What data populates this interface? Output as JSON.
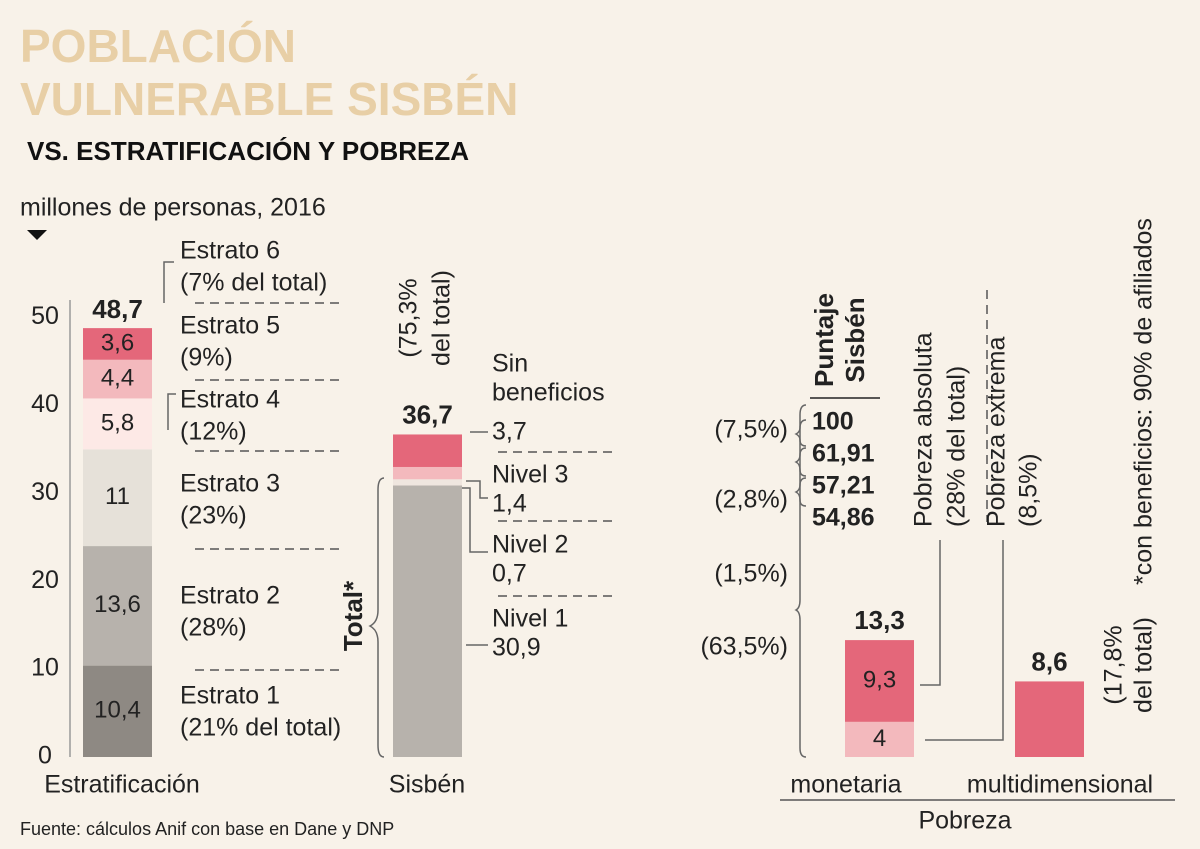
{
  "chart_data": {
    "type": "stacked_bar",
    "title_lines": [
      "POBLACIÓN",
      "VULNERABLE SISBÉN"
    ],
    "subtitle": "VS. ESTRATIFICACIÓN Y POBREZA",
    "unit_label": "millones de personas, 2016",
    "source": "Fuente: cálculos Anif con base en Dane y DNP",
    "ylim": [
      0,
      52
    ],
    "yticks": [
      0,
      10,
      20,
      30,
      40,
      50
    ],
    "bars": [
      {
        "category": "Estratificación",
        "total": 48.7,
        "total_label": "48,7",
        "segments": [
          {
            "value": 10.4,
            "value_label": "10,4",
            "color": "#8e8983",
            "label_lines": [
              "Estrato 1",
              "(21% del total)"
            ]
          },
          {
            "value": 13.6,
            "value_label": "13,6",
            "color": "#b7b2ac",
            "label_lines": [
              "Estrato 2",
              "(28%)"
            ]
          },
          {
            "value": 11,
            "value_label": "11",
            "color": "#e6e1d9",
            "label_lines": [
              "Estrato 3",
              "(23%)"
            ]
          },
          {
            "value": 5.8,
            "value_label": "5,8",
            "color": "#fde9e6",
            "label_lines": [
              "Estrato 4",
              "(12%)"
            ]
          },
          {
            "value": 4.4,
            "value_label": "4,4",
            "color": "#f3b9bd",
            "label_lines": [
              "Estrato 5",
              "(9%)"
            ]
          },
          {
            "value": 3.6,
            "value_label": "3,6",
            "color": "#e4677a",
            "label_lines": [
              "Estrato 6",
              "(7% del total)"
            ]
          }
        ]
      },
      {
        "category": "Sisbén",
        "total": 36.7,
        "total_label": "36,7",
        "note_lines": [
          "(75,3%",
          "del total)"
        ],
        "bracket_label": "Total*",
        "segments": [
          {
            "value": 30.9,
            "value_label": "30,9",
            "color": "#b7b2ac",
            "label_lines": [
              "Nivel 1"
            ]
          },
          {
            "value": 0.7,
            "value_label": "0,7",
            "color": "#efe6df",
            "label_lines": [
              "Nivel 2"
            ]
          },
          {
            "value": 1.4,
            "value_label": "1,4",
            "color": "#f3b9bd",
            "label_lines": [
              "Nivel 3"
            ]
          },
          {
            "value": 3.7,
            "value_label": "3,7",
            "color": "#e4677a",
            "label_lines": [
              "Sin",
              "beneficios"
            ]
          }
        ]
      },
      {
        "category": "monetaria",
        "total": 13.3,
        "total_label": "13,3",
        "segments": [
          {
            "value": 4,
            "value_label": "4",
            "color": "#f3b9bd",
            "label_lines": [
              "Pobreza extrema",
              "(8,5%)"
            ]
          },
          {
            "value": 9.3,
            "value_label": "9,3",
            "color": "#e4677a",
            "label_lines": [
              "Pobreza absoluta",
              "(28% del total)"
            ]
          }
        ]
      },
      {
        "category": "multidimensional",
        "total": 8.6,
        "total_label": "8,6",
        "note_lines": [
          "(17,8%",
          "del total)"
        ],
        "segments": [
          {
            "value": 8.6,
            "color": "#e4677a"
          }
        ]
      }
    ],
    "group_label": "Pobreza",
    "score_title_lines": [
      "Puntaje",
      "Sisbén"
    ],
    "scores": [
      "100",
      "61,91",
      "57,21",
      "54,86"
    ],
    "score_shares": [
      "(7,5%)",
      "(2,8%)",
      "(1,5%)",
      "(63,5%)"
    ],
    "footnote": "*con beneficios: 90% de afiliados"
  }
}
